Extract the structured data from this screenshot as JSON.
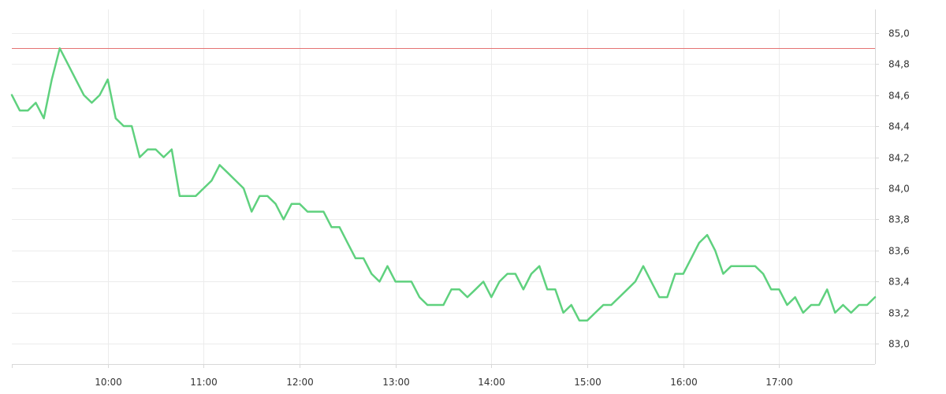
{
  "chart_data": {
    "type": "line",
    "title": "",
    "xlabel": "",
    "ylabel": "",
    "x_ticks": [
      "10:00",
      "11:00",
      "12:00",
      "13:00",
      "14:00",
      "15:00",
      "16:00",
      "17:00"
    ],
    "y_ticks": [
      "83,0",
      "83,2",
      "83,4",
      "83,6",
      "83,8",
      "84,0",
      "84,2",
      "84,4",
      "84,6",
      "84,8",
      "85,0"
    ],
    "x_range": [
      "09:00",
      "18:00"
    ],
    "ylim": [
      82.87,
      85.15
    ],
    "grid": true,
    "reference_line": {
      "value": 84.9,
      "color": "#e57373"
    },
    "series": [
      {
        "color": "#5fd17e",
        "points": [
          [
            "09:00",
            84.6
          ],
          [
            "09:05",
            84.5
          ],
          [
            "09:10",
            84.5
          ],
          [
            "09:15",
            84.55
          ],
          [
            "09:20",
            84.45
          ],
          [
            "09:25",
            84.7
          ],
          [
            "09:30",
            84.9
          ],
          [
            "09:35",
            84.8
          ],
          [
            "09:40",
            84.7
          ],
          [
            "09:45",
            84.6
          ],
          [
            "09:50",
            84.55
          ],
          [
            "09:55",
            84.6
          ],
          [
            "10:00",
            84.7
          ],
          [
            "10:05",
            84.45
          ],
          [
            "10:10",
            84.4
          ],
          [
            "10:15",
            84.4
          ],
          [
            "10:20",
            84.2
          ],
          [
            "10:25",
            84.25
          ],
          [
            "10:30",
            84.25
          ],
          [
            "10:35",
            84.2
          ],
          [
            "10:40",
            84.25
          ],
          [
            "10:45",
            83.95
          ],
          [
            "10:50",
            83.95
          ],
          [
            "10:55",
            83.95
          ],
          [
            "11:00",
            84.0
          ],
          [
            "11:05",
            84.05
          ],
          [
            "11:10",
            84.15
          ],
          [
            "11:15",
            84.1
          ],
          [
            "11:20",
            84.05
          ],
          [
            "11:25",
            84.0
          ],
          [
            "11:30",
            83.85
          ],
          [
            "11:35",
            83.95
          ],
          [
            "11:40",
            83.95
          ],
          [
            "11:45",
            83.9
          ],
          [
            "11:50",
            83.8
          ],
          [
            "11:55",
            83.9
          ],
          [
            "12:00",
            83.9
          ],
          [
            "12:05",
            83.85
          ],
          [
            "12:10",
            83.85
          ],
          [
            "12:15",
            83.85
          ],
          [
            "12:20",
            83.75
          ],
          [
            "12:25",
            83.75
          ],
          [
            "12:30",
            83.65
          ],
          [
            "12:35",
            83.55
          ],
          [
            "12:40",
            83.55
          ],
          [
            "12:45",
            83.45
          ],
          [
            "12:50",
            83.4
          ],
          [
            "12:55",
            83.5
          ],
          [
            "13:00",
            83.4
          ],
          [
            "13:05",
            83.4
          ],
          [
            "13:10",
            83.4
          ],
          [
            "13:15",
            83.3
          ],
          [
            "13:20",
            83.25
          ],
          [
            "13:25",
            83.25
          ],
          [
            "13:30",
            83.25
          ],
          [
            "13:35",
            83.35
          ],
          [
            "13:40",
            83.35
          ],
          [
            "13:45",
            83.3
          ],
          [
            "13:50",
            83.35
          ],
          [
            "13:55",
            83.4
          ],
          [
            "14:00",
            83.3
          ],
          [
            "14:05",
            83.4
          ],
          [
            "14:10",
            83.45
          ],
          [
            "14:15",
            83.45
          ],
          [
            "14:20",
            83.35
          ],
          [
            "14:25",
            83.45
          ],
          [
            "14:30",
            83.5
          ],
          [
            "14:35",
            83.35
          ],
          [
            "14:40",
            83.35
          ],
          [
            "14:45",
            83.2
          ],
          [
            "14:50",
            83.25
          ],
          [
            "14:55",
            83.15
          ],
          [
            "15:00",
            83.15
          ],
          [
            "15:05",
            83.2
          ],
          [
            "15:10",
            83.25
          ],
          [
            "15:15",
            83.25
          ],
          [
            "15:20",
            83.3
          ],
          [
            "15:25",
            83.35
          ],
          [
            "15:30",
            83.4
          ],
          [
            "15:35",
            83.5
          ],
          [
            "15:40",
            83.4
          ],
          [
            "15:45",
            83.3
          ],
          [
            "15:50",
            83.3
          ],
          [
            "15:55",
            83.45
          ],
          [
            "16:00",
            83.45
          ],
          [
            "16:05",
            83.55
          ],
          [
            "16:10",
            83.65
          ],
          [
            "16:15",
            83.7
          ],
          [
            "16:20",
            83.6
          ],
          [
            "16:25",
            83.45
          ],
          [
            "16:30",
            83.5
          ],
          [
            "16:35",
            83.5
          ],
          [
            "16:40",
            83.5
          ],
          [
            "16:45",
            83.5
          ],
          [
            "16:50",
            83.45
          ],
          [
            "16:55",
            83.35
          ],
          [
            "17:00",
            83.35
          ],
          [
            "17:05",
            83.25
          ],
          [
            "17:10",
            83.3
          ],
          [
            "17:15",
            83.2
          ],
          [
            "17:20",
            83.25
          ],
          [
            "17:25",
            83.25
          ],
          [
            "17:30",
            83.35
          ],
          [
            "17:35",
            83.2
          ],
          [
            "17:40",
            83.25
          ],
          [
            "17:45",
            83.2
          ],
          [
            "17:50",
            83.25
          ],
          [
            "17:55",
            83.25
          ],
          [
            "18:00",
            83.3
          ]
        ]
      }
    ]
  }
}
